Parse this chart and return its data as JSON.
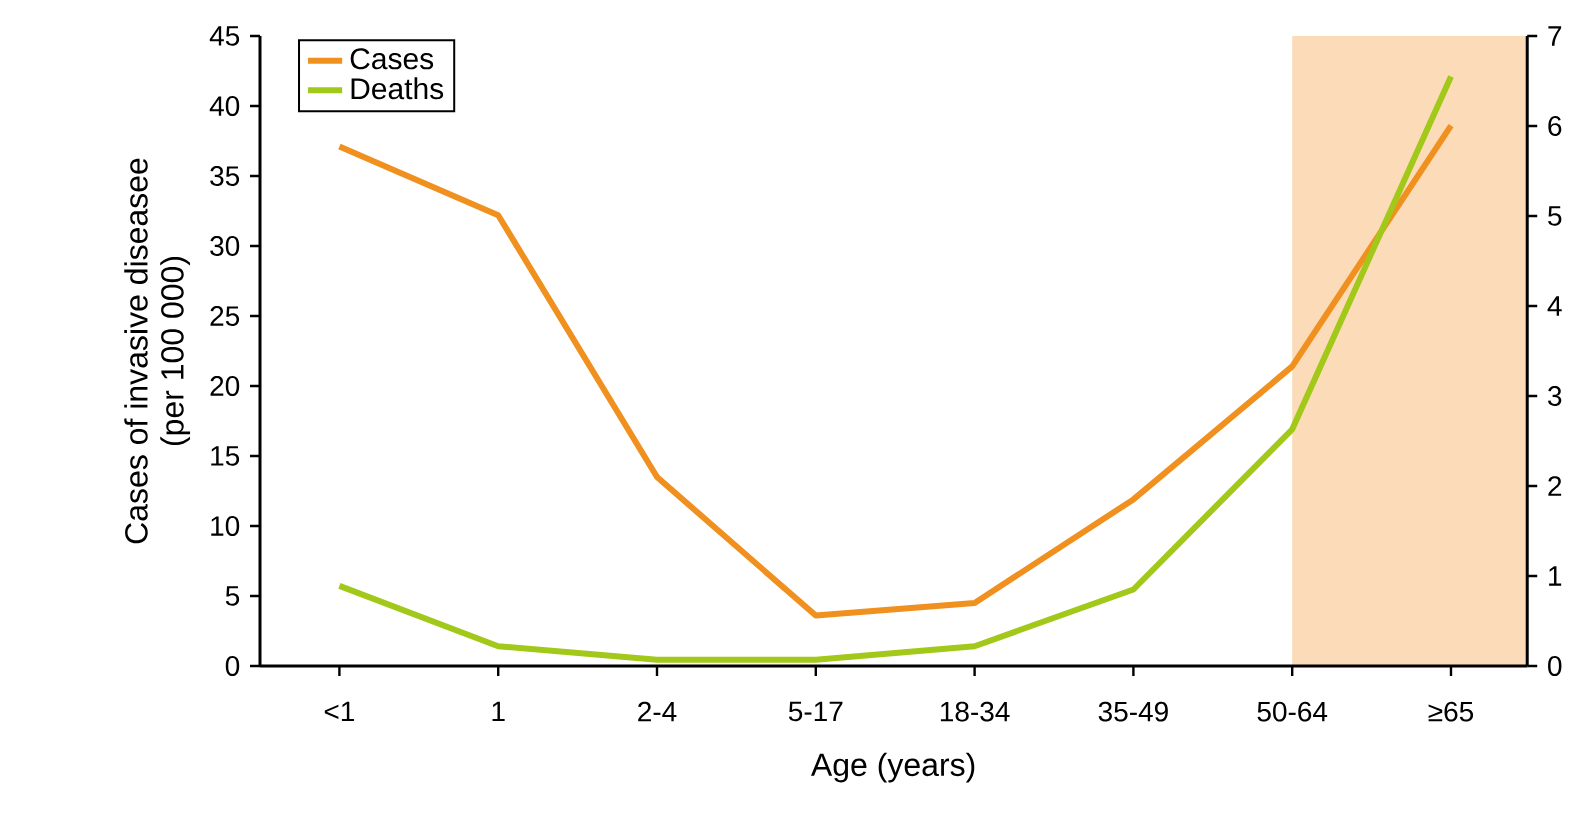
{
  "chart_data": {
    "type": "line",
    "xlabel": "Age (years)",
    "ylabel": "Cases of invasive diseasee\n(per 100 000)",
    "categories": [
      "<1",
      "1",
      "2-4",
      "5-17",
      "18-34",
      "35-49",
      "50-64",
      "≥65"
    ],
    "series": [
      {
        "name": "Cases",
        "color": "#f0901e",
        "values": [
          37.1,
          32.2,
          13.5,
          3.6,
          4.5,
          11.9,
          21.4,
          38.6
        ]
      },
      {
        "name": "Deaths",
        "color": "#a2c81a",
        "axis": "y2",
        "values": [
          0.89,
          0.22,
          0.07,
          0.07,
          0.22,
          0.85,
          2.63,
          6.55
        ]
      }
    ],
    "ylim": [
      0,
      45
    ],
    "yticks": [
      0,
      5,
      10,
      15,
      20,
      25,
      30,
      35,
      40,
      45
    ],
    "y2lim": [
      0,
      7
    ],
    "y2ticks": [
      0,
      1,
      2,
      3,
      4,
      5,
      6,
      7
    ],
    "bands": [
      {
        "axis": "x",
        "from": "50-64",
        "to": "≥65",
        "color": "#fcdcb8"
      }
    ],
    "legend": "top left",
    "grid": false,
    "marker": "none",
    "line_style": "solid"
  }
}
